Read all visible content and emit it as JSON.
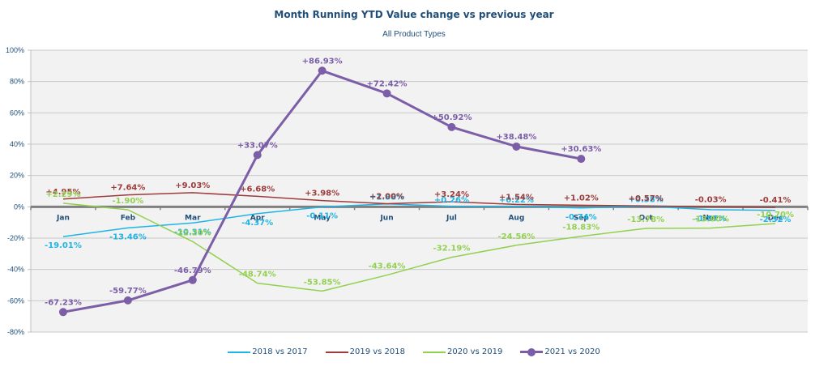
{
  "chart_data": {
    "type": "line",
    "title": "Month Running YTD Value change vs previous year",
    "subtitle": "All Product Types",
    "xlabel": "",
    "ylabel": "",
    "categories": [
      "Jan",
      "Feb",
      "Mar",
      "Apr",
      "May",
      "Jun",
      "Jul",
      "Aug",
      "Sep",
      "Oct",
      "Nov",
      "Dec"
    ],
    "yticks": [
      "100%",
      "80%",
      "60%",
      "40%",
      "20%",
      "0%",
      "-20%",
      "-40%",
      "-60%",
      "-80%"
    ],
    "ylim": [
      -80,
      100
    ],
    "grid": true,
    "legend_position": "bottom",
    "series": [
      {
        "name": "2018 vs 2017",
        "color": "#1fb4e6",
        "markers": false,
        "values": [
          -19.01,
          -13.46,
          -10.31,
          -4.37,
          -0.11,
          1.88,
          0.26,
          0.22,
          -0.74,
          0.38,
          -1.87,
          -2.32
        ],
        "labels": [
          "-19.01%",
          "-13.46%",
          "-10.31%",
          "-4.37%",
          "-0.11%",
          "+1.88%",
          "+0.26%",
          "+0.22%",
          "-0.74%",
          "+0.38%",
          "-1.87%",
          "-2.32%"
        ]
      },
      {
        "name": "2019 vs 2018",
        "color": "#9e3b3b",
        "markers": false,
        "values": [
          4.95,
          7.64,
          9.03,
          6.68,
          3.98,
          2.0,
          3.24,
          1.54,
          1.02,
          0.57,
          -0.03,
          -0.41
        ],
        "labels": [
          "+4.95%",
          "+7.64%",
          "+9.03%",
          "+6.68%",
          "+3.98%",
          "+2.00%",
          "+3.24%",
          "+1.54%",
          "+1.02%",
          "+0.57%",
          "-0.03%",
          "-0.41%"
        ]
      },
      {
        "name": "2020 vs 2019",
        "color": "#92d050",
        "markers": false,
        "values": [
          2.29,
          -1.9,
          -22.2,
          -48.74,
          -53.85,
          -43.64,
          -32.19,
          -24.56,
          -18.83,
          -13.78,
          -13.6,
          -10.7
        ],
        "labels": [
          "+2.29%",
          "-1.90%",
          "-22.20%",
          "-48.74%",
          "-53.85%",
          "-43.64%",
          "-32.19%",
          "-24.56%",
          "-18.83%",
          "-13.78%",
          "-13.60%",
          "-10.70%"
        ]
      },
      {
        "name": "2021 vs 2020",
        "color": "#7b5ea7",
        "markers": true,
        "values": [
          -67.23,
          -59.77,
          -46.79,
          33.07,
          86.93,
          72.42,
          50.92,
          38.48,
          30.63,
          null,
          null,
          null
        ],
        "labels": [
          "-67.23%",
          "-59.77%",
          "-46.79%",
          "+33.07%",
          "+86.93%",
          "+72.42%",
          "+50.92%",
          "+38.48%",
          "+30.63%",
          "",
          "",
          ""
        ]
      }
    ]
  }
}
